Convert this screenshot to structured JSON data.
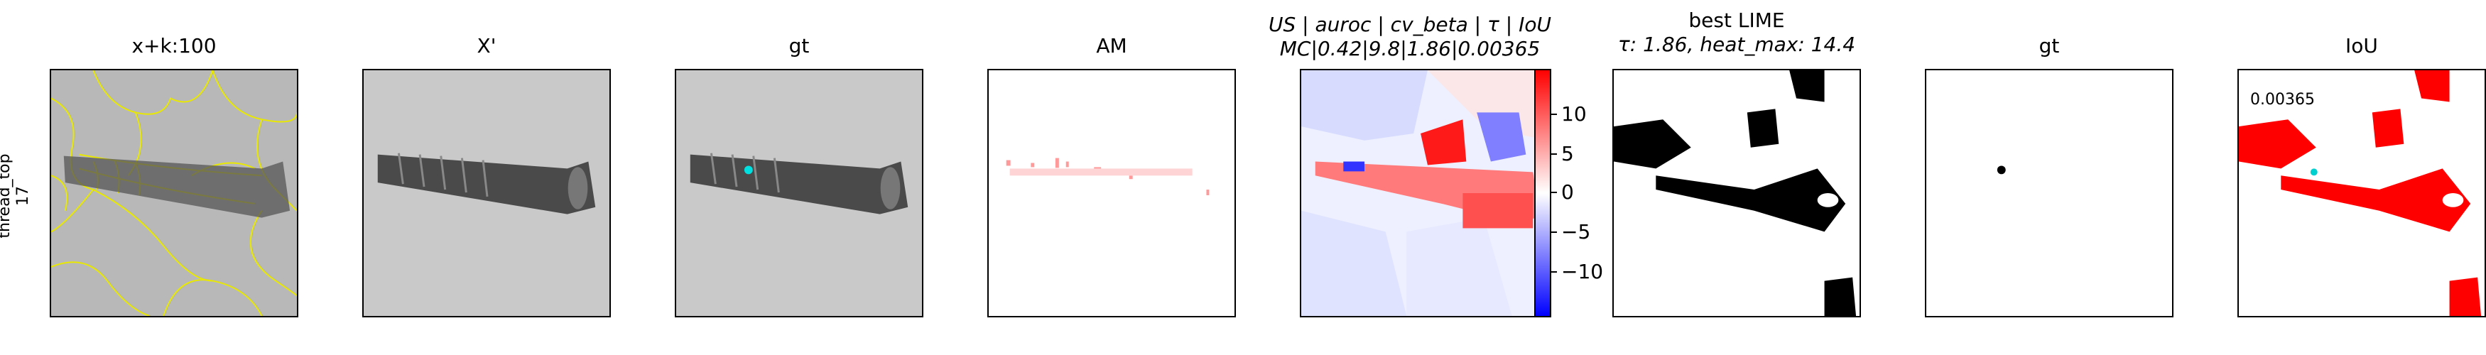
{
  "row_label": {
    "line1": "thread_top",
    "line2": "17"
  },
  "panels": [
    {
      "id": "overlay",
      "title": "x+k:100"
    },
    {
      "id": "xprime",
      "title": "X'"
    },
    {
      "id": "gt1",
      "title": "gt"
    },
    {
      "id": "am",
      "title": "AM"
    },
    {
      "id": "us",
      "title_line1": "US | auroc | cv_beta | τ | IoU",
      "title_line2": "MC|0.42|9.8|1.86|0.00365"
    },
    {
      "id": "lime",
      "title_line1": "best LIME",
      "title_line2": "τ: 1.86, heat_max: 14.4"
    },
    {
      "id": "gt2",
      "title": "gt"
    },
    {
      "id": "iou",
      "title": "IoU",
      "annotation": "0.00365"
    }
  ],
  "colorbar": {
    "ticks": [
      "10",
      "5",
      "0",
      "−5",
      "−10"
    ],
    "colors": {
      "high": "#ff0000",
      "mid": "#ffffff",
      "low": "#0000ff"
    }
  }
}
